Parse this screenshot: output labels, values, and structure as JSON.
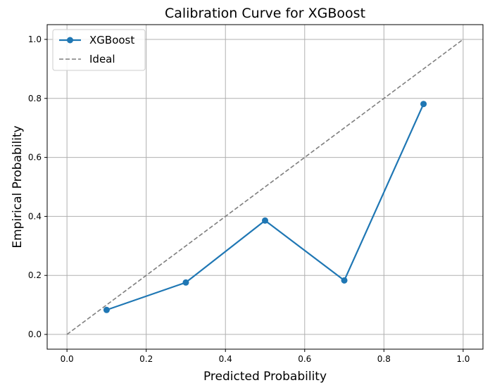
{
  "chart_data": {
    "type": "line",
    "title": "Calibration Curve for XGBoost",
    "xlabel": "Predicted Probability",
    "ylabel": "Empirical Probability",
    "xlim": [
      -0.05,
      1.05
    ],
    "ylim": [
      -0.05,
      1.05
    ],
    "xticks": [
      0.0,
      0.2,
      0.4,
      0.6,
      0.8,
      1.0
    ],
    "yticks": [
      0.0,
      0.2,
      0.4,
      0.6,
      0.8,
      1.0
    ],
    "xtick_labels": [
      "0.0",
      "0.2",
      "0.4",
      "0.6",
      "0.8",
      "1.0"
    ],
    "ytick_labels": [
      "0.0",
      "0.2",
      "0.4",
      "0.6",
      "0.8",
      "1.0"
    ],
    "grid": true,
    "legend_position": "top-left",
    "series": [
      {
        "name": "XGBoost",
        "style": "solid-line-with-markers",
        "color": "#1f77b4",
        "x": [
          0.1,
          0.3,
          0.5,
          0.7,
          0.9
        ],
        "y": [
          0.083,
          0.176,
          0.386,
          0.183,
          0.781
        ]
      },
      {
        "name": "Ideal",
        "style": "dashed",
        "color": "#7f7f7f",
        "x": [
          0.0,
          1.0
        ],
        "y": [
          0.0,
          1.0
        ]
      }
    ]
  }
}
